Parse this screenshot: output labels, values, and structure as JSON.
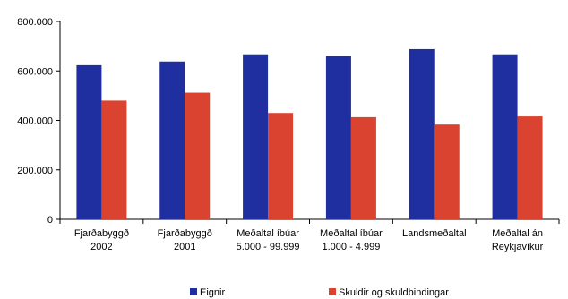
{
  "chart_data": {
    "type": "bar",
    "categories": [
      [
        "Fjarðabyggð",
        "2002"
      ],
      [
        "Fjarðabyggð",
        "2001"
      ],
      [
        "Meðaltal íbúar",
        "5.000 - 99.999"
      ],
      [
        "Meðaltal íbúar",
        "1.000 - 4.999"
      ],
      [
        "Landsmeðaltal"
      ],
      [
        "Meðaltal án",
        "Reykjavíkur"
      ]
    ],
    "series": [
      {
        "name": "Eignir",
        "color": "#1f2fa0",
        "values": [
          623000,
          638000,
          667000,
          660000,
          688000,
          667000
        ]
      },
      {
        "name": "Skuldir og skuldbindingar",
        "color": "#d9432f",
        "values": [
          480000,
          512000,
          430000,
          413000,
          383000,
          416000
        ]
      }
    ],
    "yticks": [
      "0",
      "200.000",
      "400.000",
      "600.000",
      "800.000"
    ],
    "ytick_values": [
      0,
      200000,
      400000,
      600000,
      800000
    ],
    "ylim": [
      0,
      800000
    ],
    "legend_position": "bottom",
    "grid": false
  }
}
